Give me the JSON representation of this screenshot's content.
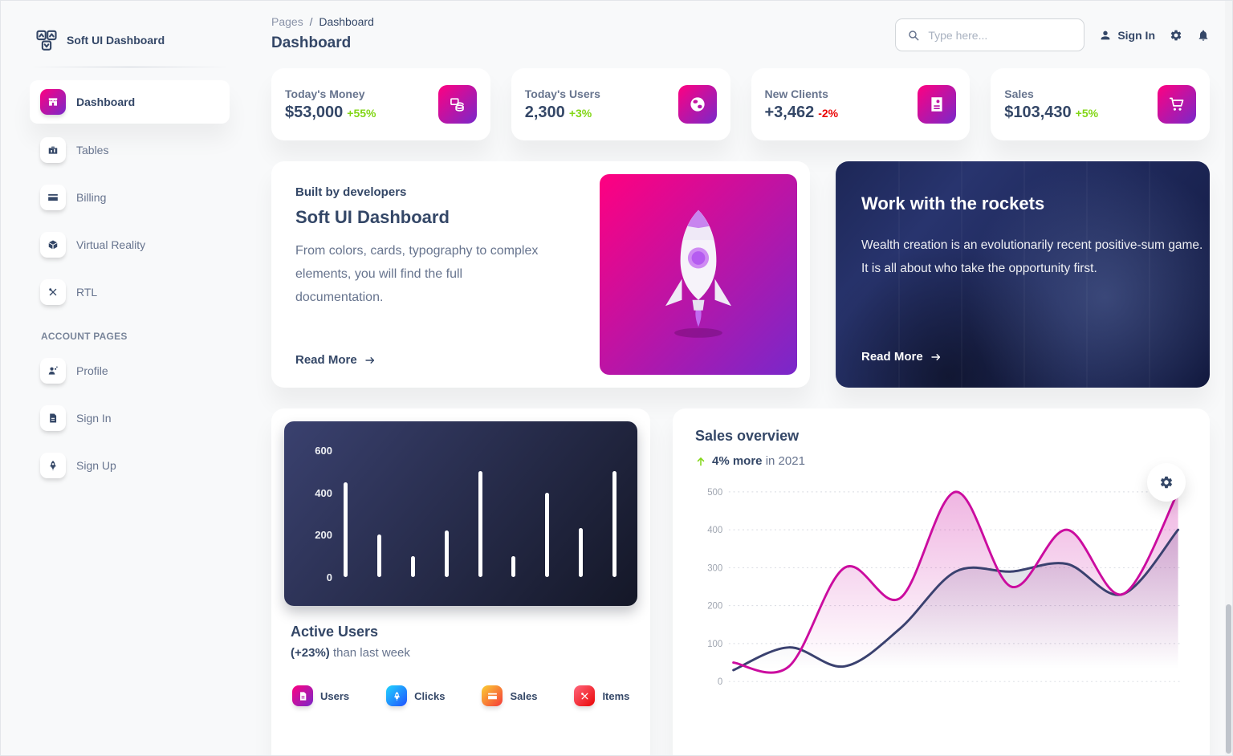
{
  "colors": {
    "background": "#f8f9fa",
    "text_dark": "#344767",
    "text_muted": "#67748e",
    "green": "#82d616",
    "red": "#ea0606",
    "primary_line": "#cb0c9f",
    "dark_line": "#3a416f",
    "gradient_primary": [
      "#ff0080",
      "#7928ca"
    ],
    "gradient_info": [
      "#21d4fd",
      "#2152ff"
    ],
    "gradient_warning": [
      "#fbcf33",
      "#f53939"
    ],
    "gradient_danger": [
      "#ff667c",
      "#ea0606"
    ],
    "gradient_dark_panel": [
      "#141727",
      "#3a416f"
    ]
  },
  "sidebar": {
    "brand": "Soft UI Dashboard",
    "items": [
      {
        "label": "Dashboard",
        "icon": "shop-icon",
        "active": true
      },
      {
        "label": "Tables",
        "icon": "table-icon",
        "active": false
      },
      {
        "label": "Billing",
        "icon": "credit-card-icon",
        "active": false
      },
      {
        "label": "Virtual Reality",
        "icon": "cube-icon",
        "active": false
      },
      {
        "label": "RTL",
        "icon": "tools-icon",
        "active": false
      }
    ],
    "section": "ACCOUNT PAGES",
    "account": [
      {
        "label": "Profile",
        "icon": "person-badge-icon"
      },
      {
        "label": "Sign In",
        "icon": "document-icon"
      },
      {
        "label": "Sign Up",
        "icon": "rocket-icon"
      }
    ]
  },
  "header": {
    "breadcrumb_root": "Pages",
    "breadcrumb_sep": "/",
    "breadcrumb_current": "Dashboard",
    "title": "Dashboard",
    "search_placeholder": "Type here...",
    "sign_in_label": "Sign In"
  },
  "stats": [
    {
      "label": "Today's Money",
      "value": "$53,000",
      "delta": "+55%",
      "direction": "up",
      "icon": "coins-icon"
    },
    {
      "label": "Today's Users",
      "value": "2,300",
      "delta": "+3%",
      "direction": "up",
      "icon": "globe-icon"
    },
    {
      "label": "New Clients",
      "value": "+3,462",
      "delta": "-2%",
      "direction": "down",
      "icon": "id-card-icon"
    },
    {
      "label": "Sales",
      "value": "$103,430",
      "delta": "+5%",
      "direction": "up",
      "icon": "cart-icon"
    }
  ],
  "promo": {
    "eyebrow": "Built by developers",
    "title": "Soft UI Dashboard",
    "body": "From colors, cards, typography to complex elements, you will find the full documentation.",
    "link": "Read More"
  },
  "rockets": {
    "title": "Work with the rockets",
    "body": "Wealth creation is an evolutionarily recent positive-sum game. It is all about who take the opportunity first.",
    "link": "Read More"
  },
  "active_users": {
    "title": "Active Users",
    "delta": "(+23%)",
    "subtitle": " than last week",
    "legend": [
      {
        "label": "Users",
        "icon": "document-icon",
        "gradient": "primary"
      },
      {
        "label": "Clicks",
        "icon": "rocket-icon",
        "gradient": "info"
      },
      {
        "label": "Sales",
        "icon": "credit-card-icon",
        "gradient": "warning"
      },
      {
        "label": "Items",
        "icon": "tools-icon",
        "gradient": "danger"
      }
    ],
    "chart_data": {
      "type": "bar",
      "values": [
        450,
        200,
        100,
        220,
        500,
        100,
        400,
        230,
        500
      ],
      "yticks": [
        600,
        400,
        200,
        0
      ],
      "ylim": [
        0,
        600
      ],
      "bar_color": "#ffffff",
      "panel_gradient": [
        "#141727",
        "#3a416f"
      ]
    }
  },
  "sales_overview": {
    "title": "Sales overview",
    "highlight": "4% more",
    "subtitle": " in 2021",
    "chart_data": {
      "type": "line",
      "points_per_series": 9,
      "series": [
        {
          "name": "primary",
          "color": "#cb0c9f",
          "values": [
            50,
            40,
            300,
            220,
            500,
            250,
            400,
            230,
            500
          ]
        },
        {
          "name": "dark",
          "color": "#3a416f",
          "values": [
            30,
            90,
            40,
            140,
            290,
            290,
            310,
            230,
            400
          ]
        }
      ],
      "yticks": [
        500,
        400,
        300,
        200,
        100,
        0
      ],
      "ylim": [
        0,
        500
      ],
      "grid": "dashed-horizontal",
      "legend_visible": false
    }
  }
}
